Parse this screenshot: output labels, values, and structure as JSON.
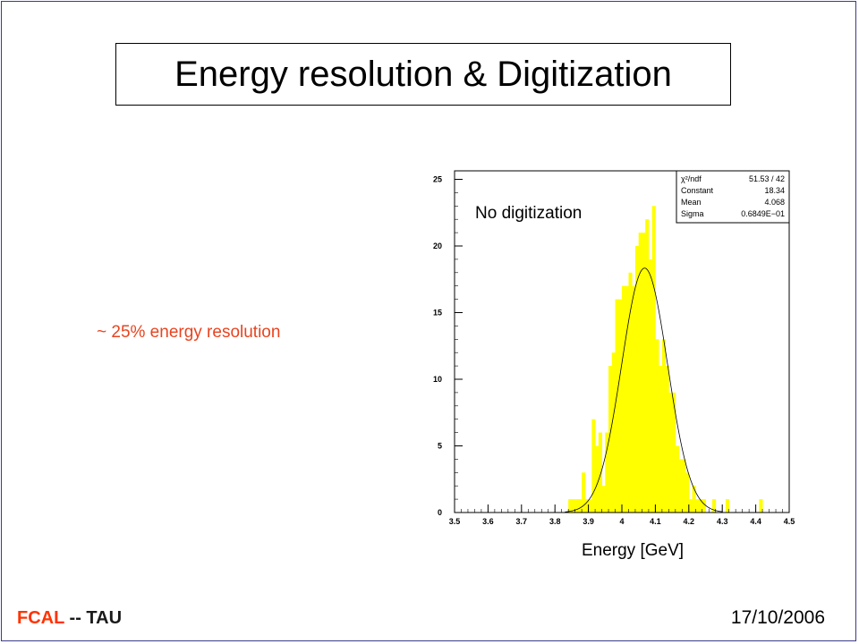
{
  "slide": {
    "title": "Energy resolution & Digitization",
    "annotation": "~ 25% energy resolution",
    "footer_left_a": "FCAL",
    "footer_left_b": "-- TAU",
    "footer_date": "17/10/2006"
  },
  "colors": {
    "fill": "#ffff00",
    "annotation": "#e8441f",
    "footer_accent": "#ff3300"
  },
  "chart_data": {
    "type": "bar",
    "label": "No digitization",
    "xlabel": "Energy [GeV]",
    "ylabel": "",
    "xlim": [
      3.5,
      4.5
    ],
    "ylim": [
      0,
      26
    ],
    "bin_width": 0.01,
    "x_ticks": [
      "3.5",
      "3.6",
      "3.7",
      "3.8",
      "3.9",
      "4",
      "4.1",
      "4.2",
      "4.3",
      "4.4",
      "4.5"
    ],
    "y_ticks": [
      "0",
      "5",
      "10",
      "15",
      "20",
      "25"
    ],
    "bins": [
      {
        "x": 3.84,
        "y": 1
      },
      {
        "x": 3.85,
        "y": 1
      },
      {
        "x": 3.86,
        "y": 1
      },
      {
        "x": 3.87,
        "y": 1
      },
      {
        "x": 3.88,
        "y": 3
      },
      {
        "x": 3.89,
        "y": 1
      },
      {
        "x": 3.9,
        "y": 1
      },
      {
        "x": 3.91,
        "y": 7
      },
      {
        "x": 3.92,
        "y": 5
      },
      {
        "x": 3.93,
        "y": 6
      },
      {
        "x": 3.94,
        "y": 2
      },
      {
        "x": 3.95,
        "y": 6
      },
      {
        "x": 3.96,
        "y": 11
      },
      {
        "x": 3.97,
        "y": 12
      },
      {
        "x": 3.98,
        "y": 16
      },
      {
        "x": 3.99,
        "y": 16
      },
      {
        "x": 4.0,
        "y": 17
      },
      {
        "x": 4.01,
        "y": 17
      },
      {
        "x": 4.02,
        "y": 18
      },
      {
        "x": 4.03,
        "y": 17
      },
      {
        "x": 4.04,
        "y": 20
      },
      {
        "x": 4.05,
        "y": 21
      },
      {
        "x": 4.06,
        "y": 21
      },
      {
        "x": 4.07,
        "y": 22
      },
      {
        "x": 4.08,
        "y": 19
      },
      {
        "x": 4.09,
        "y": 23
      },
      {
        "x": 4.1,
        "y": 13
      },
      {
        "x": 4.11,
        "y": 11
      },
      {
        "x": 4.12,
        "y": 13
      },
      {
        "x": 4.13,
        "y": 11
      },
      {
        "x": 4.14,
        "y": 9
      },
      {
        "x": 4.15,
        "y": 9
      },
      {
        "x": 4.16,
        "y": 5
      },
      {
        "x": 4.17,
        "y": 4
      },
      {
        "x": 4.18,
        "y": 4
      },
      {
        "x": 4.19,
        "y": 3
      },
      {
        "x": 4.2,
        "y": 1
      },
      {
        "x": 4.21,
        "y": 2
      },
      {
        "x": 4.22,
        "y": 1
      },
      {
        "x": 4.23,
        "y": 1
      },
      {
        "x": 4.24,
        "y": 1
      },
      {
        "x": 4.27,
        "y": 1
      },
      {
        "x": 4.31,
        "y": 1
      },
      {
        "x": 4.41,
        "y": 1
      }
    ],
    "fit": {
      "function": "gaussian",
      "constant": 18.34,
      "mean": 4.068,
      "sigma": 0.06849
    },
    "stats_box": [
      {
        "label": "χ²/ndf",
        "value": "51.53   /   42"
      },
      {
        "label": "Constant",
        "value": "18.34"
      },
      {
        "label": "Mean",
        "value": "4.068"
      },
      {
        "label": "Sigma",
        "value": "0.6849E−01"
      }
    ]
  }
}
